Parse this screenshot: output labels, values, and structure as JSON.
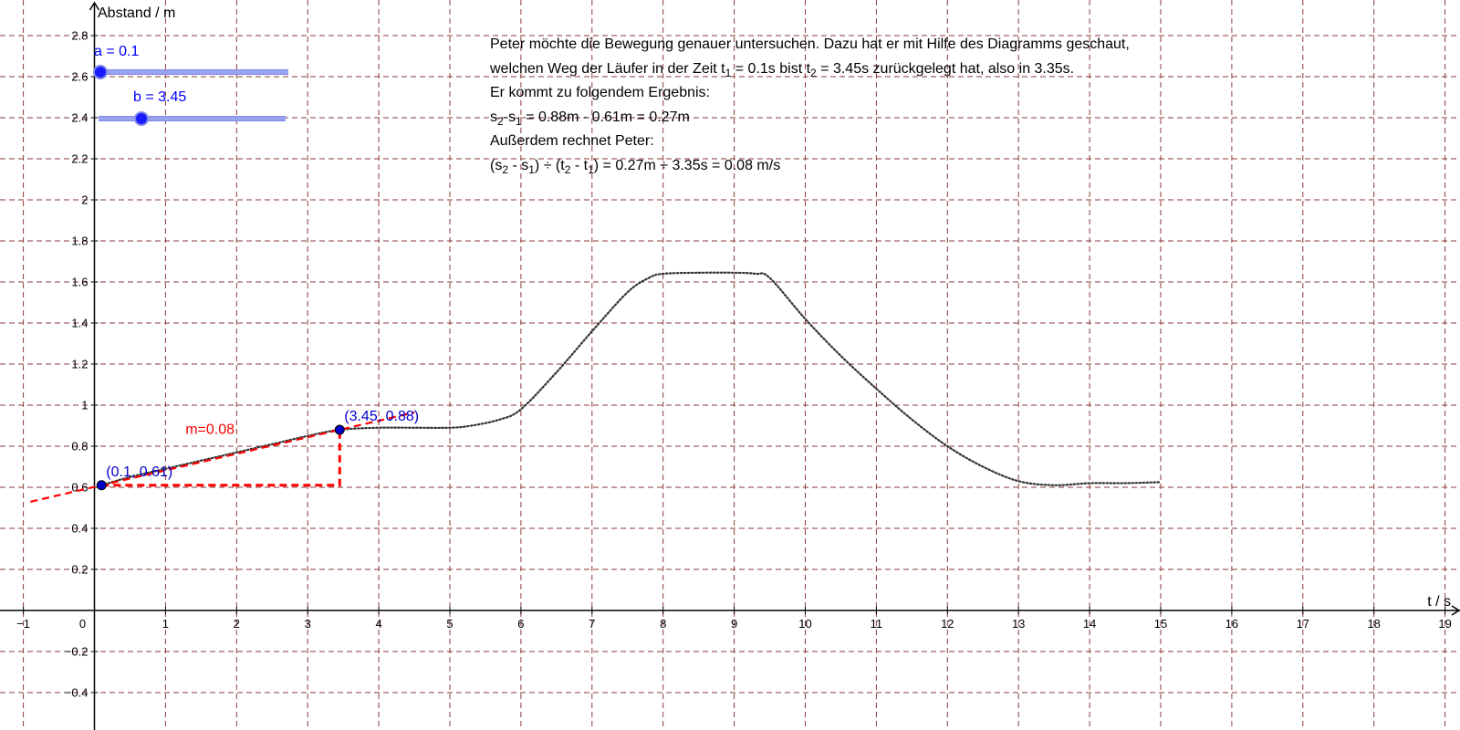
{
  "chart_data": {
    "type": "line",
    "xlabel": "t / s",
    "ylabel": "Abstand / m",
    "xlim": [
      -1,
      19
    ],
    "ylim": [
      -0.4,
      2.8
    ],
    "grid": true,
    "x_ticks": [
      -1,
      0,
      1,
      2,
      3,
      4,
      5,
      6,
      7,
      8,
      9,
      10,
      11,
      12,
      13,
      14,
      15,
      16,
      17,
      18,
      19
    ],
    "y_ticks": [
      -0.4,
      -0.2,
      0.2,
      0.4,
      0.6,
      0.8,
      1,
      1.2,
      1.4,
      1.6,
      1.8,
      2,
      2.2,
      2.4,
      2.6,
      2.8
    ],
    "series": [
      {
        "type": "dotted-curve",
        "color": "#333333",
        "x": [
          0.1,
          0.5,
          1,
          1.5,
          2,
          2.5,
          3,
          3.45,
          4,
          4.5,
          5,
          5.3,
          5.7,
          6,
          6.5,
          7,
          7.5,
          7.8,
          8,
          8.5,
          9,
          9.3,
          9.5,
          10,
          10.5,
          11,
          11.5,
          12,
          12.5,
          13,
          13.5,
          14,
          14.5,
          15
        ],
        "y": [
          0.61,
          0.65,
          0.69,
          0.73,
          0.77,
          0.81,
          0.85,
          0.88,
          0.89,
          0.89,
          0.89,
          0.9,
          0.93,
          0.98,
          1.16,
          1.36,
          1.55,
          1.62,
          1.64,
          1.645,
          1.645,
          1.64,
          1.62,
          1.42,
          1.24,
          1.08,
          0.93,
          0.8,
          0.7,
          0.63,
          0.61,
          0.62,
          0.62,
          0.625
        ]
      }
    ],
    "points": [
      {
        "x": 0.1,
        "y": 0.61,
        "label": "(0.1, 0.61)",
        "color": "#0000cc"
      },
      {
        "x": 3.45,
        "y": 0.88,
        "label": "(3.45, 0.88)",
        "color": "#0000cc"
      }
    ],
    "secant": {
      "color": "#ff0000",
      "slope_label": "m=0.08",
      "x_from": -0.9,
      "x_to": 4.5
    },
    "slope_triangle": {
      "color": "#ff0000"
    }
  },
  "sliders": [
    {
      "label": "a = 0.1",
      "value": 0.1,
      "fraction": 0.0
    },
    {
      "label": "b = 3.45",
      "value": 3.45,
      "fraction": 0.22
    }
  ],
  "text": {
    "line1": "Peter möchte die Bewegung genauer untersuchen. Dazu hat er mit Hilfe des Diagramms geschaut,",
    "line2_a": "welchen Weg der Läufer in der Zeit t",
    "line2_sub1": "1",
    "line2_b": " = 0.1s bist t",
    "line2_sub2": "2",
    "line2_c": " = 3.45s zurückgelegt hat, also in 3.35s.",
    "line3": "Er kommt zu folgendem Ergebnis:",
    "line4_a": "s",
    "line4_sub1": "2",
    "line4_b": "-s",
    "line4_sub2": "1",
    "line4_c": " = 0.88m - 0.61m = 0.27m",
    "line5": "Außerdem rechnet Peter:",
    "line6_a": "(s",
    "line6_sub1": "2",
    "line6_b": " - s",
    "line6_sub2": "1",
    "line6_c": ") ÷ (t",
    "line6_sub3": "2",
    "line6_d": " - t",
    "line6_sub4": "1",
    "line6_e": ") = 0.27m ÷ 3.35s = 0.08 m/s"
  }
}
